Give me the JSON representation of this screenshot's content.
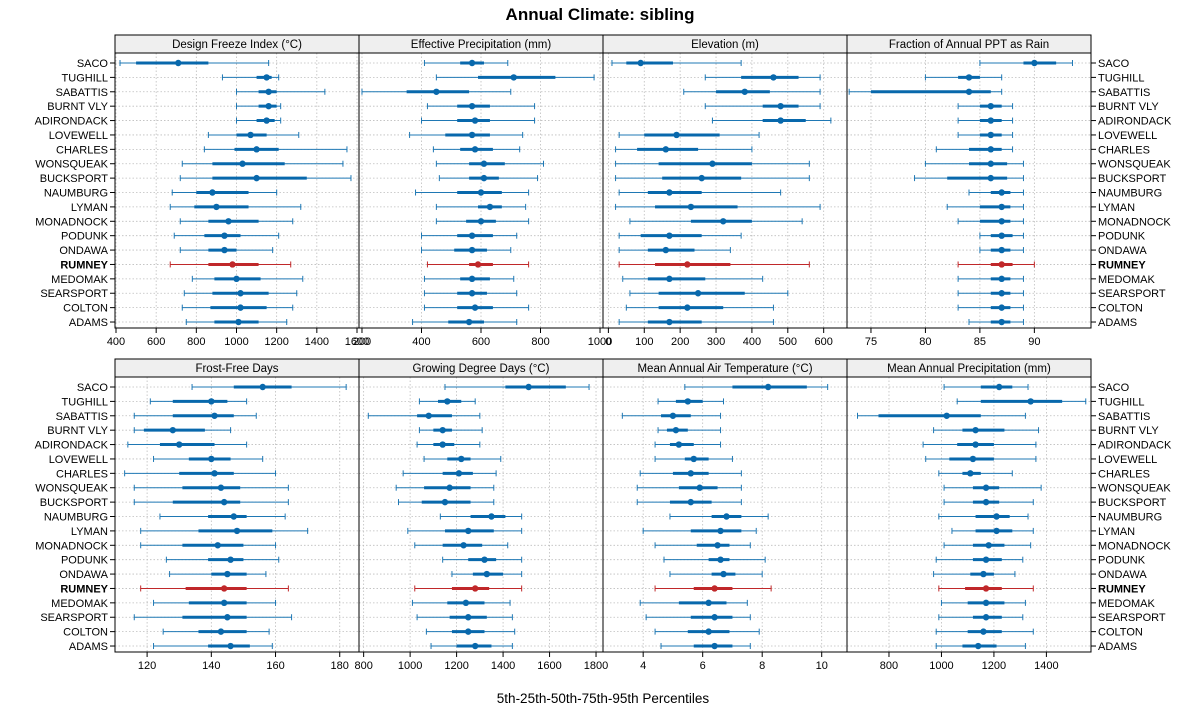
{
  "chart_data": {
    "type": "percentile-dotplot",
    "title": "Annual Climate: sibling",
    "xlabel": "5th-25th-50th-75th-95th Percentiles",
    "highlight_site": "RUMNEY",
    "colors": {
      "normal": "#1f78b4",
      "normal_dark": "#0868ac",
      "highlight": "#c0282a",
      "grid": "#bdbdbd",
      "strip": "#efefef",
      "frame": "#000000"
    },
    "sites": [
      "SACO",
      "TUGHILL",
      "SABATTIS",
      "BURNT VLY",
      "ADIRONDACK",
      "LOVEWELL",
      "CHARLES",
      "WONSQUEAK",
      "BUCKSPORT",
      "NAUMBURG",
      "LYMAN",
      "MONADNOCK",
      "PODUNK",
      "ONDAWA",
      "RUMNEY",
      "MEDOMAK",
      "SEARSPORT",
      "COLTON",
      "ADAMS"
    ],
    "panels": [
      {
        "title": "Design Freeze Index (°C)",
        "xlim": [
          395,
          1610
        ],
        "ticks": [
          400,
          600,
          800,
          1000,
          1200,
          1400,
          1600
        ],
        "percentiles": [
          [
            420,
            500,
            710,
            860,
            1160
          ],
          [
            930,
            1100,
            1150,
            1175,
            1210
          ],
          [
            1000,
            1110,
            1160,
            1200,
            1440
          ],
          [
            1000,
            1110,
            1160,
            1200,
            1220
          ],
          [
            1000,
            1100,
            1150,
            1190,
            1220
          ],
          [
            860,
            1000,
            1070,
            1150,
            1310
          ],
          [
            840,
            990,
            1100,
            1210,
            1550
          ],
          [
            730,
            880,
            1030,
            1240,
            1530
          ],
          [
            720,
            880,
            1100,
            1350,
            1570
          ],
          [
            680,
            800,
            880,
            1060,
            1200
          ],
          [
            670,
            790,
            900,
            1060,
            1320
          ],
          [
            720,
            860,
            960,
            1110,
            1280
          ],
          [
            690,
            840,
            940,
            1020,
            1210
          ],
          [
            720,
            860,
            940,
            1000,
            1180
          ],
          [
            670,
            860,
            980,
            1110,
            1270
          ],
          [
            780,
            890,
            1000,
            1120,
            1330
          ],
          [
            740,
            880,
            1020,
            1160,
            1300
          ],
          [
            730,
            870,
            1020,
            1150,
            1280
          ],
          [
            750,
            890,
            1010,
            1110,
            1250
          ]
        ]
      },
      {
        "title": "Effective Precipitation (mm)",
        "xlim": [
          190,
          1010
        ],
        "ticks": [
          200,
          400,
          600,
          800,
          1000
        ],
        "percentiles": [
          [
            410,
            530,
            570,
            610,
            690
          ],
          [
            450,
            590,
            710,
            850,
            980
          ],
          [
            200,
            350,
            450,
            560,
            700
          ],
          [
            420,
            520,
            570,
            630,
            780
          ],
          [
            400,
            520,
            580,
            630,
            780
          ],
          [
            360,
            480,
            570,
            630,
            740
          ],
          [
            440,
            530,
            580,
            640,
            730
          ],
          [
            450,
            560,
            610,
            680,
            810
          ],
          [
            460,
            560,
            610,
            660,
            790
          ],
          [
            380,
            520,
            600,
            670,
            760
          ],
          [
            450,
            590,
            630,
            670,
            750
          ],
          [
            450,
            550,
            600,
            650,
            760
          ],
          [
            400,
            520,
            570,
            640,
            720
          ],
          [
            400,
            510,
            570,
            620,
            700
          ],
          [
            420,
            560,
            590,
            640,
            760
          ],
          [
            410,
            530,
            570,
            630,
            710
          ],
          [
            410,
            520,
            570,
            620,
            720
          ],
          [
            410,
            520,
            580,
            640,
            760
          ],
          [
            370,
            490,
            560,
            610,
            720
          ]
        ]
      },
      {
        "title": "Elevation (m)",
        "xlim": [
          -15,
          665
        ],
        "ticks": [
          0,
          100,
          200,
          300,
          400,
          500,
          600
        ],
        "percentiles": [
          [
            10,
            50,
            90,
            180,
            370
          ],
          [
            270,
            370,
            460,
            530,
            590
          ],
          [
            210,
            300,
            380,
            450,
            590
          ],
          [
            270,
            430,
            480,
            530,
            590
          ],
          [
            290,
            430,
            480,
            550,
            620
          ],
          [
            30,
            100,
            190,
            310,
            420
          ],
          [
            20,
            80,
            160,
            250,
            400
          ],
          [
            20,
            140,
            290,
            400,
            560
          ],
          [
            20,
            150,
            260,
            370,
            560
          ],
          [
            30,
            110,
            170,
            260,
            480
          ],
          [
            20,
            130,
            230,
            360,
            590
          ],
          [
            60,
            230,
            320,
            400,
            540
          ],
          [
            30,
            90,
            170,
            260,
            370
          ],
          [
            30,
            110,
            160,
            240,
            340
          ],
          [
            30,
            130,
            220,
            340,
            560
          ],
          [
            40,
            110,
            170,
            270,
            430
          ],
          [
            60,
            140,
            250,
            380,
            500
          ],
          [
            50,
            140,
            220,
            320,
            460
          ],
          [
            30,
            110,
            170,
            260,
            460
          ]
        ]
      },
      {
        "title": "Fraction of Annual PPT as Rain",
        "xlim": [
          72.8,
          95.2
        ],
        "ticks": [
          75,
          80,
          85,
          90
        ],
        "percentiles": [
          [
            85,
            89,
            90,
            92,
            93.5
          ],
          [
            80,
            83,
            84,
            85,
            87
          ],
          [
            73,
            75,
            84,
            86,
            87
          ],
          [
            83,
            85,
            86,
            87,
            88
          ],
          [
            83,
            85,
            86,
            87,
            88
          ],
          [
            83,
            85,
            86,
            87,
            88
          ],
          [
            81,
            84,
            86,
            87,
            88
          ],
          [
            80,
            84,
            86,
            87.5,
            89
          ],
          [
            79,
            82,
            86,
            87.5,
            89
          ],
          [
            84,
            86,
            87,
            87.8,
            89
          ],
          [
            82,
            85,
            87,
            87.8,
            89
          ],
          [
            83,
            85,
            87,
            87.8,
            89
          ],
          [
            85,
            86,
            87,
            88,
            89
          ],
          [
            85,
            86,
            87,
            87.8,
            89
          ],
          [
            83,
            86,
            87,
            88,
            90
          ],
          [
            83,
            86,
            87,
            87.8,
            89
          ],
          [
            83,
            86,
            87,
            87.8,
            89
          ],
          [
            83,
            86,
            87,
            87.8,
            89
          ],
          [
            84,
            86,
            87,
            87.8,
            89
          ]
        ]
      },
      {
        "title": "Frost-Free Days",
        "xlim": [
          110,
          186
        ],
        "ticks": [
          120,
          140,
          160,
          180
        ],
        "percentiles": [
          [
            134,
            147,
            156,
            165,
            182
          ],
          [
            121,
            128,
            140,
            145,
            151
          ],
          [
            116,
            128,
            141,
            147,
            154
          ],
          [
            116,
            119,
            128,
            138,
            146
          ],
          [
            114,
            124,
            130,
            141,
            151
          ],
          [
            122,
            133,
            140,
            146,
            156
          ],
          [
            113,
            130,
            141,
            147,
            160
          ],
          [
            116,
            131,
            143,
            149,
            164
          ],
          [
            116,
            128,
            144,
            149,
            164
          ],
          [
            124,
            139,
            147,
            151,
            163
          ],
          [
            118,
            136,
            148,
            159,
            170
          ],
          [
            118,
            131,
            142,
            150,
            160
          ],
          [
            126,
            139,
            146,
            150,
            161
          ],
          [
            127,
            140,
            145,
            151,
            157
          ],
          [
            118,
            132,
            144,
            151,
            164
          ],
          [
            122,
            133,
            144,
            151,
            160
          ],
          [
            116,
            131,
            145,
            151,
            165
          ],
          [
            125,
            136,
            143,
            151,
            158
          ],
          [
            122,
            139,
            146,
            152,
            159
          ]
        ]
      },
      {
        "title": "Growing Degree Days (°C)",
        "xlim": [
          780,
          1830
        ],
        "ticks": [
          800,
          1000,
          1200,
          1400,
          1600,
          1800
        ],
        "percentiles": [
          [
            1150,
            1410,
            1510,
            1670,
            1770
          ],
          [
            1040,
            1120,
            1160,
            1220,
            1280
          ],
          [
            820,
            1030,
            1080,
            1180,
            1300
          ],
          [
            1040,
            1100,
            1140,
            1180,
            1310
          ],
          [
            1030,
            1100,
            1140,
            1190,
            1300
          ],
          [
            1060,
            1160,
            1220,
            1260,
            1390
          ],
          [
            970,
            1140,
            1210,
            1270,
            1370
          ],
          [
            940,
            1060,
            1170,
            1260,
            1360
          ],
          [
            950,
            1050,
            1150,
            1260,
            1360
          ],
          [
            1130,
            1260,
            1350,
            1410,
            1480
          ],
          [
            990,
            1150,
            1250,
            1360,
            1480
          ],
          [
            1020,
            1140,
            1230,
            1310,
            1420
          ],
          [
            1140,
            1250,
            1320,
            1370,
            1480
          ],
          [
            1180,
            1270,
            1330,
            1400,
            1480
          ],
          [
            1020,
            1180,
            1280,
            1340,
            1480
          ],
          [
            1010,
            1160,
            1240,
            1320,
            1430
          ],
          [
            1030,
            1170,
            1250,
            1330,
            1440
          ],
          [
            1070,
            1180,
            1250,
            1320,
            1450
          ],
          [
            1090,
            1200,
            1280,
            1350,
            1440
          ]
        ]
      },
      {
        "title": "Mean Annual Air Temperature (°C)",
        "xlim": [
          2.65,
          10.85
        ],
        "ticks": [
          4,
          6,
          8,
          10
        ],
        "percentiles": [
          [
            5.4,
            7.0,
            8.2,
            9.5,
            10.2
          ],
          [
            4.5,
            5.1,
            5.5,
            6.0,
            6.7
          ],
          [
            3.3,
            4.6,
            5.0,
            5.6,
            6.6
          ],
          [
            4.5,
            4.8,
            5.1,
            5.5,
            6.6
          ],
          [
            4.4,
            4.9,
            5.2,
            5.7,
            6.6
          ],
          [
            4.4,
            5.4,
            5.7,
            6.2,
            7.0
          ],
          [
            3.9,
            5.0,
            5.6,
            6.2,
            7.3
          ],
          [
            3.8,
            5.2,
            5.9,
            6.5,
            7.3
          ],
          [
            3.8,
            4.9,
            5.6,
            6.3,
            7.3
          ],
          [
            4.9,
            6.3,
            6.8,
            7.3,
            8.2
          ],
          [
            4.0,
            5.6,
            6.6,
            7.3,
            7.8
          ],
          [
            4.4,
            5.8,
            6.5,
            6.9,
            7.6
          ],
          [
            4.7,
            6.2,
            6.6,
            6.9,
            8.1
          ],
          [
            4.9,
            6.3,
            6.7,
            7.1,
            8.0
          ],
          [
            4.4,
            5.7,
            6.4,
            7.0,
            8.3
          ],
          [
            3.9,
            5.2,
            6.2,
            6.8,
            7.5
          ],
          [
            4.1,
            5.6,
            6.4,
            7.0,
            7.6
          ],
          [
            4.4,
            5.5,
            6.2,
            6.9,
            7.9
          ],
          [
            4.6,
            5.7,
            6.4,
            7.0,
            7.6
          ]
        ]
      },
      {
        "title": "Mean Annual Precipitation (mm)",
        "xlim": [
          640,
          1570
        ],
        "ticks": [
          800,
          1000,
          1200,
          1400
        ],
        "percentiles": [
          [
            1010,
            1150,
            1220,
            1270,
            1330
          ],
          [
            1060,
            1150,
            1340,
            1460,
            1550
          ],
          [
            680,
            760,
            1020,
            1150,
            1320
          ],
          [
            970,
            1080,
            1130,
            1240,
            1370
          ],
          [
            930,
            1060,
            1130,
            1200,
            1360
          ],
          [
            940,
            1030,
            1120,
            1200,
            1360
          ],
          [
            990,
            1080,
            1110,
            1150,
            1270
          ],
          [
            1010,
            1120,
            1170,
            1220,
            1380
          ],
          [
            1010,
            1120,
            1170,
            1220,
            1350
          ],
          [
            990,
            1130,
            1210,
            1260,
            1330
          ],
          [
            1040,
            1130,
            1210,
            1270,
            1350
          ],
          [
            1010,
            1120,
            1180,
            1240,
            1340
          ],
          [
            980,
            1120,
            1170,
            1230,
            1310
          ],
          [
            970,
            1110,
            1160,
            1200,
            1280
          ],
          [
            990,
            1090,
            1170,
            1230,
            1350
          ],
          [
            1000,
            1100,
            1170,
            1240,
            1320
          ],
          [
            990,
            1120,
            1170,
            1230,
            1310
          ],
          [
            980,
            1100,
            1160,
            1230,
            1350
          ],
          [
            980,
            1080,
            1140,
            1210,
            1320
          ]
        ]
      }
    ]
  }
}
